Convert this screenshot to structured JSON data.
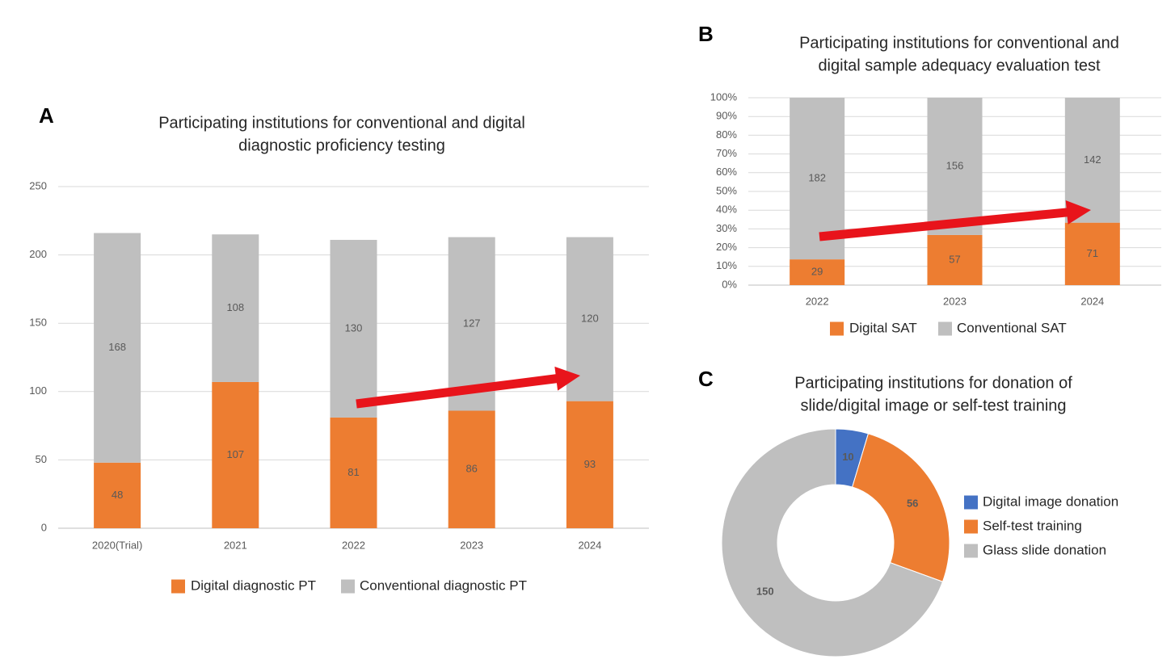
{
  "chart_data": [
    {
      "type": "bar",
      "panel": "A",
      "title": [
        "Participating institutions for conventional and digital",
        "diagnostic proficiency testing"
      ],
      "categories": [
        "2020(Trial)",
        "2021",
        "2022",
        "2023",
        "2024"
      ],
      "series": [
        {
          "name": "Digital diagnostic PT",
          "color": "#ed7d31",
          "values": [
            48,
            107,
            81,
            86,
            93
          ]
        },
        {
          "name": "Conventional diagnostic PT",
          "color": "#bfbfbf",
          "values": [
            168,
            108,
            130,
            127,
            120
          ]
        }
      ],
      "stacked": true,
      "ylim": [
        0,
        250
      ],
      "yticks": [
        0,
        50,
        100,
        150,
        200,
        250
      ],
      "grid": true,
      "legend": "bottom"
    },
    {
      "type": "bar",
      "panel": "B",
      "title": [
        "Participating institutions for conventional and",
        "digital sample adequacy evaluation test"
      ],
      "categories": [
        "2022",
        "2023",
        "2024"
      ],
      "series": [
        {
          "name": "Digital SAT",
          "color": "#ed7d31",
          "values": [
            29,
            57,
            71
          ]
        },
        {
          "name": "Conventional SAT",
          "color": "#bfbfbf",
          "values": [
            182,
            156,
            142
          ]
        }
      ],
      "stacked": true,
      "normalize": true,
      "ylim": [
        0,
        100
      ],
      "yticks": [
        {
          "value": 0,
          "label": "0%"
        },
        {
          "value": 10,
          "label": "10%"
        },
        {
          "value": 20,
          "label": "20%"
        },
        {
          "value": 30,
          "label": "30%"
        },
        {
          "value": 40,
          "label": "40%"
        },
        {
          "value": 50,
          "label": "50%"
        },
        {
          "value": 60,
          "label": "60%"
        },
        {
          "value": 70,
          "label": "70%"
        },
        {
          "value": 80,
          "label": "80%"
        },
        {
          "value": 90,
          "label": "90%"
        },
        {
          "value": 100,
          "label": "100%"
        }
      ],
      "grid": true,
      "legend": "bottom"
    },
    {
      "type": "donut",
      "panel": "C",
      "title": [
        "Participating institutions for donation of",
        "slide/digital image or self-test training"
      ],
      "categories": [
        "Digital image donation",
        "Self-test training",
        "Glass slide donation"
      ],
      "values": [
        10,
        56,
        150
      ],
      "colors": [
        "#4472c4",
        "#ed7d31",
        "#bfbfbf"
      ],
      "legend": "right"
    }
  ]
}
